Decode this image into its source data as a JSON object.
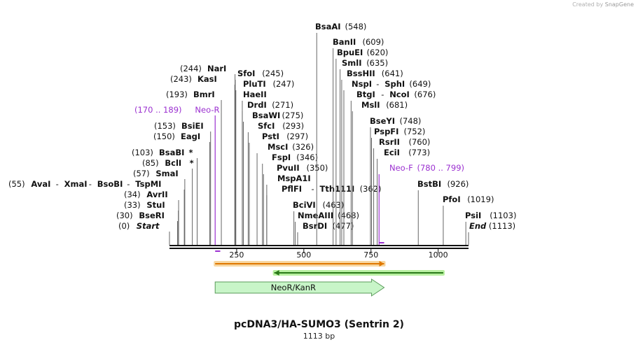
{
  "credit": {
    "prefix": "Created by",
    "brand": "SnapGene"
  },
  "plasmid": {
    "name": "pcDNA3/HA-SUMO3 (Sentrin 2)",
    "length_label": "1113 bp",
    "length_bp": 1113
  },
  "colors": {
    "enzyme": "#111111",
    "position": "#111111",
    "line": "#666666",
    "primer": "#9b30d0",
    "orange_feature": "#e07800",
    "orange_fill": "#f7d7a2",
    "green_feature": "#2a7a1a",
    "green_fill": "#b8f0a0",
    "neo_fill": "#c8f5c8",
    "neo_stroke": "#5a9a5a"
  },
  "ruler": {
    "ticks": [
      {
        "bp": 250,
        "label": "250"
      },
      {
        "bp": 500,
        "label": "500"
      },
      {
        "bp": 750,
        "label": "750"
      },
      {
        "bp": 1000,
        "label": "1000"
      }
    ]
  },
  "enzyme_rows": [
    {
      "line_bp": 0,
      "parts": [
        {
          "text": "(0)",
          "type": "pos"
        },
        {
          "text": "Start",
          "type": "italic"
        }
      ]
    },
    {
      "line_bp": 30,
      "parts": [
        {
          "text": "(30)",
          "type": "pos"
        },
        {
          "text": "BseRI",
          "type": "name"
        }
      ]
    },
    {
      "line_bp": 33,
      "parts": [
        {
          "text": "(33)",
          "type": "pos"
        },
        {
          "text": "StuI",
          "type": "name"
        }
      ]
    },
    {
      "line_bp": 34,
      "parts": [
        {
          "text": "(34)",
          "type": "pos"
        },
        {
          "text": "AvrII",
          "type": "name"
        }
      ]
    },
    {
      "line_bp": 55,
      "parts": [
        {
          "text": "(55)",
          "type": "pos"
        },
        {
          "text": "AvaI",
          "type": "name"
        },
        {
          "text": "-",
          "type": "sep"
        },
        {
          "text": "XmaI",
          "type": "name"
        },
        {
          "text": "-",
          "type": "sep"
        },
        {
          "text": "BsoBI",
          "type": "name"
        },
        {
          "text": "-",
          "type": "sep"
        },
        {
          "text": "TspMI",
          "type": "name"
        }
      ]
    },
    {
      "line_bp": 57,
      "parts": [
        {
          "text": "(57)",
          "type": "pos"
        },
        {
          "text": "SmaI",
          "type": "name"
        }
      ]
    },
    {
      "line_bp": 85,
      "parts": [
        {
          "text": "(85)",
          "type": "pos"
        },
        {
          "text": "BclI",
          "type": "name"
        },
        {
          "text": "*",
          "type": "star"
        }
      ]
    },
    {
      "line_bp": 103,
      "parts": [
        {
          "text": "(103)",
          "type": "pos"
        },
        {
          "text": "BsaBI",
          "type": "name"
        },
        {
          "text": "*",
          "type": "star"
        }
      ]
    },
    {
      "line_bp": 150,
      "parts": [
        {
          "text": "(150)",
          "type": "pos"
        },
        {
          "text": "EagI",
          "type": "name"
        }
      ]
    },
    {
      "line_bp": 153,
      "parts": [
        {
          "text": "(153)",
          "type": "pos"
        },
        {
          "text": "BsiEI",
          "type": "name"
        }
      ]
    },
    {
      "line_bp": 170,
      "primer": true,
      "parts": [
        {
          "text": "(170 .. 189)",
          "type": "primer"
        },
        {
          "text": "Neo-R",
          "type": "primer"
        }
      ]
    },
    {
      "line_bp": 193,
      "parts": [
        {
          "text": "(193)",
          "type": "pos"
        },
        {
          "text": "BmrI",
          "type": "name"
        }
      ]
    },
    {
      "line_bp": 243,
      "parts": [
        {
          "text": "(243)",
          "type": "pos"
        },
        {
          "text": "KasI",
          "type": "name"
        }
      ]
    },
    {
      "line_bp": 244,
      "parts": [
        {
          "text": "(244)",
          "type": "pos"
        },
        {
          "text": "NarI",
          "type": "name"
        }
      ]
    },
    {
      "line_bp": 245,
      "parts": [
        {
          "text": "SfoI",
          "type": "name"
        },
        {
          "text": "(245)",
          "type": "pos"
        }
      ]
    },
    {
      "line_bp": 247,
      "parts": [
        {
          "text": "PluTI",
          "type": "name"
        },
        {
          "text": "(247)",
          "type": "pos"
        }
      ]
    },
    {
      "line_bp": 271,
      "parts": [
        {
          "text": "HaeII",
          "type": "name"
        }
      ]
    },
    {
      "line_bp": 271,
      "parts": [
        {
          "text": "DrdI",
          "type": "name"
        },
        {
          "text": "(271)",
          "type": "pos"
        }
      ]
    },
    {
      "line_bp": 275,
      "parts": [
        {
          "text": "BsaWI",
          "type": "name"
        },
        {
          "text": "(275)",
          "type": "pos"
        }
      ]
    },
    {
      "line_bp": 293,
      "parts": [
        {
          "text": "SfcI",
          "type": "name"
        },
        {
          "text": "(293)",
          "type": "pos"
        }
      ]
    },
    {
      "line_bp": 297,
      "parts": [
        {
          "text": "PstI",
          "type": "name"
        },
        {
          "text": "(297)",
          "type": "pos"
        }
      ]
    },
    {
      "line_bp": 326,
      "parts": [
        {
          "text": "MscI",
          "type": "name"
        },
        {
          "text": "(326)",
          "type": "pos"
        }
      ]
    },
    {
      "line_bp": 346,
      "parts": [
        {
          "text": "FspI",
          "type": "name"
        },
        {
          "text": "(346)",
          "type": "pos"
        }
      ]
    },
    {
      "line_bp": 350,
      "parts": [
        {
          "text": "PvuII",
          "type": "name"
        },
        {
          "text": "(350)",
          "type": "pos"
        }
      ]
    },
    {
      "line_bp": 362,
      "parts": [
        {
          "text": "MspA1I",
          "type": "name"
        }
      ]
    },
    {
      "line_bp": 362,
      "parts": [
        {
          "text": "PflFI",
          "type": "name"
        },
        {
          "text": "-",
          "type": "sep"
        },
        {
          "text": "Tth111I",
          "type": "name"
        },
        {
          "text": "(362)",
          "type": "pos"
        }
      ]
    },
    {
      "line_bp": 463,
      "parts": [
        {
          "text": "BciVI",
          "type": "name"
        },
        {
          "text": "(463)",
          "type": "pos"
        }
      ]
    },
    {
      "line_bp": 468,
      "parts": [
        {
          "text": "NmeAIII",
          "type": "name"
        },
        {
          "text": "(468)",
          "type": "pos"
        }
      ]
    },
    {
      "line_bp": 477,
      "parts": [
        {
          "text": "BsrDI",
          "type": "name"
        },
        {
          "text": "(477)",
          "type": "pos"
        }
      ]
    },
    {
      "line_bp": 548,
      "parts": [
        {
          "text": "BsaAI",
          "type": "name"
        },
        {
          "text": "(548)",
          "type": "pos"
        }
      ]
    },
    {
      "line_bp": 609,
      "parts": [
        {
          "text": "BanII",
          "type": "name"
        },
        {
          "text": "(609)",
          "type": "pos"
        }
      ]
    },
    {
      "line_bp": 620,
      "parts": [
        {
          "text": "BpuEI",
          "type": "name"
        },
        {
          "text": "(620)",
          "type": "pos"
        }
      ]
    },
    {
      "line_bp": 635,
      "parts": [
        {
          "text": "SmlI",
          "type": "name"
        },
        {
          "text": "(635)",
          "type": "pos"
        }
      ]
    },
    {
      "line_bp": 641,
      "parts": [
        {
          "text": "BssHII",
          "type": "name"
        },
        {
          "text": "(641)",
          "type": "pos"
        }
      ]
    },
    {
      "line_bp": 649,
      "parts": [
        {
          "text": "NspI",
          "type": "name"
        },
        {
          "text": "-",
          "type": "sep"
        },
        {
          "text": "SphI",
          "type": "name"
        },
        {
          "text": "(649)",
          "type": "pos"
        }
      ]
    },
    {
      "line_bp": 676,
      "parts": [
        {
          "text": "BtgI",
          "type": "name"
        },
        {
          "text": "-",
          "type": "sep"
        },
        {
          "text": "NcoI",
          "type": "name"
        },
        {
          "text": "(676)",
          "type": "pos"
        }
      ]
    },
    {
      "line_bp": 681,
      "parts": [
        {
          "text": "MslI",
          "type": "name"
        },
        {
          "text": "(681)",
          "type": "pos"
        }
      ]
    },
    {
      "line_bp": 748,
      "parts": [
        {
          "text": "BseYI",
          "type": "name"
        },
        {
          "text": "(748)",
          "type": "pos"
        }
      ]
    },
    {
      "line_bp": 752,
      "parts": [
        {
          "text": "PspFI",
          "type": "name"
        },
        {
          "text": "(752)",
          "type": "pos"
        }
      ]
    },
    {
      "line_bp": 760,
      "parts": [
        {
          "text": "RsrII",
          "type": "name"
        },
        {
          "text": "(760)",
          "type": "pos"
        }
      ]
    },
    {
      "line_bp": 773,
      "parts": [
        {
          "text": "EciI",
          "type": "name"
        },
        {
          "text": "(773)",
          "type": "pos"
        }
      ]
    },
    {
      "line_bp": 780,
      "primer": true,
      "parts": [
        {
          "text": "Neo-F",
          "type": "primer"
        },
        {
          "text": "(780 .. 799)",
          "type": "primer"
        }
      ]
    },
    {
      "line_bp": 926,
      "parts": [
        {
          "text": "BstBI",
          "type": "name"
        },
        {
          "text": "(926)",
          "type": "pos"
        }
      ]
    },
    {
      "line_bp": 1019,
      "parts": [
        {
          "text": "PfoI",
          "type": "name"
        },
        {
          "text": "(1019)",
          "type": "pos"
        }
      ]
    },
    {
      "line_bp": 1103,
      "parts": [
        {
          "text": "PsiI",
          "type": "name"
        },
        {
          "text": "(1103)",
          "type": "pos"
        }
      ]
    },
    {
      "line_bp": 1113,
      "parts": [
        {
          "text": "End",
          "type": "italic"
        },
        {
          "text": "(1113)",
          "type": "pos"
        }
      ]
    }
  ],
  "features": [
    {
      "name": "orange-feature",
      "start_bp": 170,
      "end_bp": 799,
      "direction": "forward"
    },
    {
      "name": "green-feature",
      "start_bp": 390,
      "end_bp": 1019,
      "direction": "reverse"
    }
  ],
  "neo": {
    "label": "NeoR/KanR",
    "start_bp": 170,
    "end_bp": 799,
    "direction": "forward"
  }
}
